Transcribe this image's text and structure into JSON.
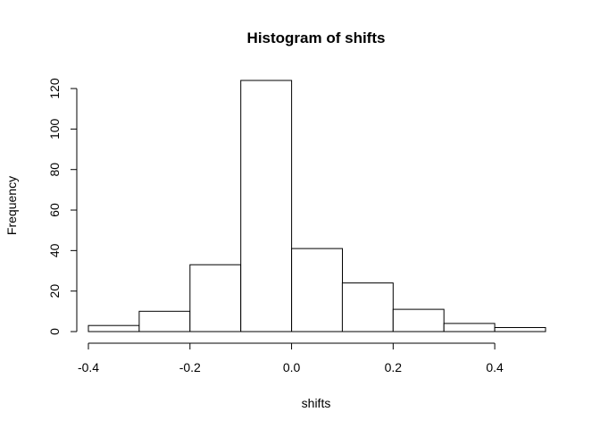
{
  "chart_data": {
    "type": "bar",
    "title": "Histogram of shifts",
    "xlabel": "shifts",
    "ylabel": "Frequency",
    "bins": [
      {
        "from": -0.4,
        "to": -0.3,
        "count": 3
      },
      {
        "from": -0.3,
        "to": -0.2,
        "count": 10
      },
      {
        "from": -0.2,
        "to": -0.1,
        "count": 33
      },
      {
        "from": -0.1,
        "to": 0.0,
        "count": 124
      },
      {
        "from": 0.0,
        "to": 0.1,
        "count": 41
      },
      {
        "from": 0.1,
        "to": 0.2,
        "count": 24
      },
      {
        "from": 0.2,
        "to": 0.3,
        "count": 11
      },
      {
        "from": 0.3,
        "to": 0.4,
        "count": 4
      },
      {
        "from": 0.4,
        "to": 0.5,
        "count": 2
      }
    ],
    "xticks": [
      "-0.4",
      "-0.2",
      "0.0",
      "0.2",
      "0.4"
    ],
    "xtick_values": [
      -0.4,
      -0.2,
      0.0,
      0.2,
      0.4
    ],
    "xlim": [
      -0.4,
      0.5
    ],
    "yticks": [
      "0",
      "20",
      "40",
      "60",
      "80",
      "100",
      "120"
    ],
    "ytick_values": [
      0,
      20,
      40,
      60,
      80,
      100,
      120
    ],
    "ylim": [
      0,
      124
    ],
    "grid": false,
    "colors": {
      "bar_fill": "#ffffff",
      "bar_stroke": "#000000"
    }
  }
}
